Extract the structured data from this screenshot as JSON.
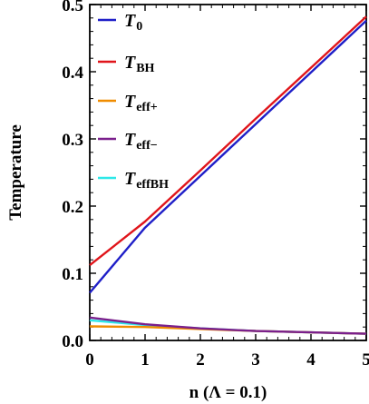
{
  "chart_data": {
    "type": "line",
    "xlabel": "n (Λ = 0.1)",
    "ylabel": "Temperature",
    "xlim": [
      0,
      5
    ],
    "ylim": [
      0,
      0.5
    ],
    "xticks": [
      "0",
      "1",
      "2",
      "3",
      "4",
      "5"
    ],
    "yticks": [
      "0.0",
      "0.1",
      "0.2",
      "0.3",
      "0.4",
      "0.5"
    ],
    "grid": false,
    "legend_position": "top-left",
    "series": [
      {
        "name": "T",
        "sub": "0",
        "color": "#1f1fc8",
        "x": [
          0,
          1,
          2,
          3,
          4,
          5
        ],
        "y": [
          0.071,
          0.168,
          0.245,
          0.322,
          0.399,
          0.476
        ]
      },
      {
        "name": "T",
        "sub": "BH",
        "color": "#e0151b",
        "x": [
          0,
          1,
          2,
          3,
          4,
          5
        ],
        "y": [
          0.112,
          0.177,
          0.253,
          0.33,
          0.406,
          0.482
        ]
      },
      {
        "name": "T",
        "sub": "eff+",
        "color": "#f08c00",
        "x": [
          0,
          1,
          2,
          3,
          4,
          5
        ],
        "y": [
          0.021,
          0.02,
          0.017,
          0.014,
          0.012,
          0.01
        ]
      },
      {
        "name": "T",
        "sub": "eff−",
        "color": "#7a1f8c",
        "x": [
          0,
          1,
          2,
          3,
          4,
          5
        ],
        "y": [
          0.034,
          0.024,
          0.018,
          0.014,
          0.012,
          0.01
        ]
      },
      {
        "name": "T",
        "sub": "effBH",
        "color": "#2ee8e8",
        "x": [
          0,
          1,
          2,
          3,
          4,
          5
        ],
        "y": [
          0.03,
          0.023,
          0.018,
          0.014,
          0.012,
          0.01
        ]
      }
    ]
  }
}
